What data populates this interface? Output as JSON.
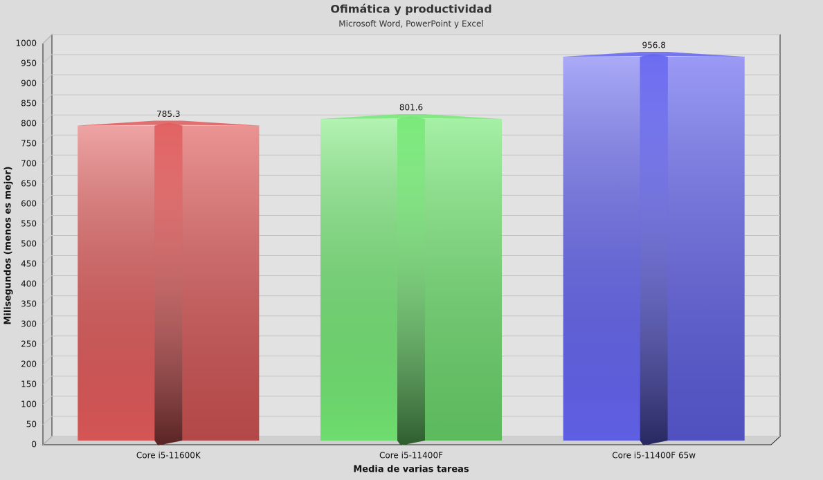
{
  "chart_data": {
    "type": "bar",
    "title": "Ofimática y productividad",
    "subtitle": "Microsoft Word, PowerPoint y Excel",
    "x_label": "Media de varias tareas",
    "y_label": "Milisegundos (menos es mejor)",
    "categories": [
      "Core i5-11600K",
      "Core i5-11400F",
      "Core i5-11400F 65w"
    ],
    "values": [
      785.3,
      801.6,
      956.8
    ],
    "colors": [
      "#e05a5a",
      "#74e874",
      "#6464f0"
    ],
    "ylim": [
      0,
      1000
    ],
    "yticks": [
      0,
      50,
      100,
      150,
      200,
      250,
      300,
      350,
      400,
      450,
      500,
      550,
      600,
      650,
      700,
      750,
      800,
      850,
      900,
      950,
      1000
    ],
    "grid": true
  }
}
